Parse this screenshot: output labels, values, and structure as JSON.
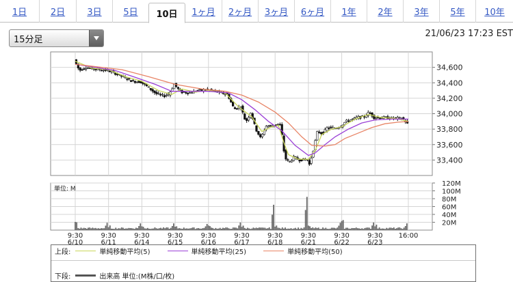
{
  "tabs": [
    {
      "label": "1日",
      "active": false
    },
    {
      "label": "2日",
      "active": false
    },
    {
      "label": "3日",
      "active": false
    },
    {
      "label": "5日",
      "active": false
    },
    {
      "label": "10日",
      "active": true
    },
    {
      "label": "1ヶ月",
      "active": false
    },
    {
      "label": "2ヶ月",
      "active": false
    },
    {
      "label": "3ヶ月",
      "active": false
    },
    {
      "label": "6ヶ月",
      "active": false
    },
    {
      "label": "1年",
      "active": false
    },
    {
      "label": "2年",
      "active": false
    },
    {
      "label": "3年",
      "active": false
    },
    {
      "label": "5年",
      "active": false
    },
    {
      "label": "10年",
      "active": false
    }
  ],
  "interval_select": {
    "value": "15分足",
    "icon": "chevron-down-icon"
  },
  "timestamp": "21/06/23 17:23 EST",
  "colors": {
    "up_candle": "#ffffff",
    "down_candle": "#111111",
    "ma5": "#c9d65a",
    "ma25": "#9a3fd6",
    "ma50": "#e88466",
    "volume": "#666666",
    "grid": "#d4d4d4"
  },
  "chart_data": [
    {
      "type": "line",
      "title": "",
      "ylim": [
        33200,
        34800
      ],
      "y_ticks": [
        "34,600",
        "34,400",
        "34,200",
        "34,000",
        "33,800",
        "33,600",
        "33,400"
      ],
      "y_tick_values": [
        34600,
        34400,
        34200,
        34000,
        33800,
        33600,
        33400
      ],
      "x_labels": [
        {
          "time": "9:30",
          "date": "6/10"
        },
        {
          "time": "9:30",
          "date": "6/11"
        },
        {
          "time": "9:30",
          "date": "6/14"
        },
        {
          "time": "9:30",
          "date": "6/15"
        },
        {
          "time": "9:30",
          "date": "6/16"
        },
        {
          "time": "9:30",
          "date": "6/17"
        },
        {
          "time": "9:30",
          "date": "6/18"
        },
        {
          "time": "9:30",
          "date": "6/21"
        },
        {
          "time": "9:30",
          "date": "6/22"
        },
        {
          "time": "9:30",
          "date": "6/23"
        },
        {
          "time": "16:00",
          "date": ""
        }
      ],
      "price_points": [
        [
          0,
          34700
        ],
        [
          0.15,
          34560
        ],
        [
          0.35,
          34600
        ],
        [
          0.6,
          34580
        ],
        [
          1.0,
          34560
        ],
        [
          1.3,
          34510
        ],
        [
          1.55,
          34460
        ],
        [
          1.75,
          34420
        ],
        [
          2.0,
          34410
        ],
        [
          2.2,
          34350
        ],
        [
          2.45,
          34260
        ],
        [
          2.7,
          34230
        ],
        [
          2.85,
          34260
        ],
        [
          3.0,
          34380
        ],
        [
          3.2,
          34280
        ],
        [
          3.45,
          34270
        ],
        [
          3.7,
          34300
        ],
        [
          4.0,
          34310
        ],
        [
          4.3,
          34280
        ],
        [
          4.6,
          34250
        ],
        [
          4.8,
          34060
        ],
        [
          5.0,
          34090
        ],
        [
          5.15,
          33890
        ],
        [
          5.3,
          34020
        ],
        [
          5.45,
          33800
        ],
        [
          5.6,
          33680
        ],
        [
          5.75,
          33840
        ],
        [
          5.95,
          33840
        ],
        [
          6.1,
          33870
        ],
        [
          6.2,
          33840
        ],
        [
          6.32,
          33430
        ],
        [
          6.45,
          33370
        ],
        [
          6.6,
          33440
        ],
        [
          6.75,
          33400
        ],
        [
          7.0,
          33410
        ],
        [
          7.05,
          33330
        ],
        [
          7.15,
          33480
        ],
        [
          7.3,
          33770
        ],
        [
          7.45,
          33740
        ],
        [
          7.6,
          33820
        ],
        [
          7.8,
          33810
        ],
        [
          8.0,
          33840
        ],
        [
          8.15,
          33900
        ],
        [
          8.3,
          33920
        ],
        [
          8.5,
          33950
        ],
        [
          8.7,
          33960
        ],
        [
          8.85,
          34020
        ],
        [
          9.0,
          33950
        ],
        [
          9.3,
          33950
        ],
        [
          9.6,
          33940
        ],
        [
          9.85,
          33940
        ],
        [
          10.0,
          33870
        ]
      ],
      "series": [
        {
          "name": "単純移動平均(5)",
          "color_key": "ma5",
          "points": [
            [
              0,
              34680
            ],
            [
              0.5,
              34590
            ],
            [
              1.0,
              34570
            ],
            [
              1.5,
              34480
            ],
            [
              2.0,
              34420
            ],
            [
              2.5,
              34300
            ],
            [
              2.9,
              34250
            ],
            [
              3.2,
              34320
            ],
            [
              3.6,
              34280
            ],
            [
              4.0,
              34300
            ],
            [
              4.5,
              34270
            ],
            [
              4.9,
              34090
            ],
            [
              5.3,
              33960
            ],
            [
              5.6,
              33770
            ],
            [
              5.9,
              33830
            ],
            [
              6.1,
              33850
            ],
            [
              6.25,
              33640
            ],
            [
              6.4,
              33470
            ],
            [
              6.7,
              33410
            ],
            [
              7.0,
              33410
            ],
            [
              7.2,
              33520
            ],
            [
              7.4,
              33730
            ],
            [
              7.7,
              33800
            ],
            [
              8.0,
              33830
            ],
            [
              8.4,
              33930
            ],
            [
              8.8,
              33990
            ],
            [
              9.2,
              33950
            ],
            [
              9.6,
              33940
            ],
            [
              10.0,
              33900
            ]
          ]
        },
        {
          "name": "単純移動平均(25)",
          "color_key": "ma25",
          "points": [
            [
              0,
              34640
            ],
            [
              0.6,
              34600
            ],
            [
              1.2,
              34560
            ],
            [
              1.8,
              34470
            ],
            [
              2.4,
              34380
            ],
            [
              2.9,
              34290
            ],
            [
              3.4,
              34290
            ],
            [
              4.0,
              34290
            ],
            [
              4.6,
              34270
            ],
            [
              5.0,
              34180
            ],
            [
              5.4,
              34050
            ],
            [
              5.8,
              33900
            ],
            [
              6.2,
              33780
            ],
            [
              6.6,
              33590
            ],
            [
              7.0,
              33460
            ],
            [
              7.2,
              33490
            ],
            [
              7.5,
              33600
            ],
            [
              7.8,
              33700
            ],
            [
              8.2,
              33800
            ],
            [
              8.6,
              33880
            ],
            [
              9.0,
              33920
            ],
            [
              9.5,
              33930
            ],
            [
              10.0,
              33930
            ]
          ]
        },
        {
          "name": "単純移動平均(50)",
          "color_key": "ma50",
          "points": [
            [
              0,
              34640
            ],
            [
              0.6,
              34610
            ],
            [
              1.4,
              34570
            ],
            [
              2.2,
              34480
            ],
            [
              3.0,
              34380
            ],
            [
              3.8,
              34320
            ],
            [
              4.5,
              34290
            ],
            [
              5.0,
              34240
            ],
            [
              5.5,
              34150
            ],
            [
              6.0,
              34020
            ],
            [
              6.4,
              33880
            ],
            [
              6.8,
              33700
            ],
            [
              7.1,
              33590
            ],
            [
              7.5,
              33580
            ],
            [
              7.8,
              33600
            ],
            [
              8.1,
              33680
            ],
            [
              8.5,
              33750
            ],
            [
              8.9,
              33820
            ],
            [
              9.3,
              33870
            ],
            [
              9.7,
              33890
            ],
            [
              10.0,
              33900
            ]
          ]
        }
      ]
    },
    {
      "type": "bar",
      "title": "単位: M",
      "ylim": [
        0,
        120
      ],
      "y_ticks": [
        "120M",
        "100M",
        "80M",
        "60M",
        "40M",
        "20M"
      ],
      "y_tick_values": [
        120,
        100,
        80,
        60,
        40,
        20
      ],
      "sessions": [
        {
          "x": 0,
          "open_spike": 26,
          "close_spike": 8
        },
        {
          "x": 1,
          "open_spike": 12,
          "close_spike": 26
        },
        {
          "x": 2,
          "open_spike": 12,
          "close_spike": 24
        },
        {
          "x": 3,
          "open_spike": 10,
          "close_spike": 24
        },
        {
          "x": 4,
          "open_spike": 12,
          "close_spike": 22
        },
        {
          "x": 5,
          "open_spike": 12,
          "close_spike": 27
        },
        {
          "x": 6,
          "open_spike": 14,
          "close_spike": 90
        },
        {
          "x": 7,
          "open_spike": 14,
          "close_spike": 118
        },
        {
          "x": 8,
          "open_spike": 26,
          "close_spike": 26
        },
        {
          "x": 9,
          "open_spike": 15,
          "close_spike": 27
        },
        {
          "x": 10,
          "open_spike": 24,
          "close_spike": 24
        }
      ]
    }
  ],
  "legend": {
    "upper_label": "上段:",
    "lower_label": "下段:",
    "ma5_label": "単純移動平均(5)",
    "ma25_label": "単純移動平均(25)",
    "ma50_label": "単純移動平均(50)",
    "volume_label": "出来高 単位:(M株/口/枚)"
  }
}
